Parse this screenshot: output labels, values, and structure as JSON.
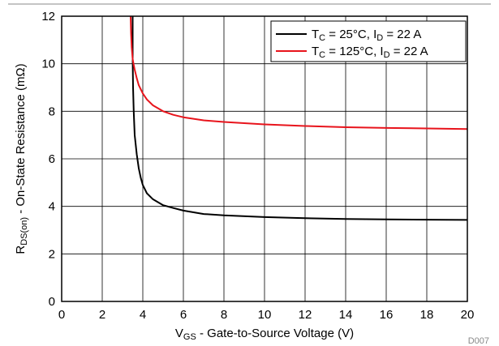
{
  "chart_data": {
    "type": "line",
    "xlabel": {
      "main": "V",
      "sub": "GS",
      "rest": " - Gate-to-Source Voltage (V)"
    },
    "ylabel": {
      "main": "R",
      "sub": "DS(on)",
      "rest": " - On-State Resistance (mΩ)"
    },
    "xlim": [
      0,
      20
    ],
    "ylim": [
      0,
      12
    ],
    "xticks": [
      0,
      2,
      4,
      6,
      8,
      10,
      12,
      14,
      16,
      18,
      20
    ],
    "yticks": [
      0,
      2,
      4,
      6,
      8,
      10,
      12
    ],
    "grid": true,
    "legend_position": "top-right",
    "footnote": "D007",
    "series": [
      {
        "legend": {
          "a": "T",
          "a_sub": "C",
          "b": " = 25°C, I",
          "b_sub": "D",
          "c": " = 22 A"
        },
        "color": "#000000",
        "x": [
          3.5,
          3.5,
          3.52,
          3.55,
          3.6,
          3.7,
          3.8,
          3.9,
          4.0,
          4.2,
          4.5,
          5.0,
          5.5,
          6.0,
          7.0,
          8.0,
          10.0,
          12.0,
          14.0,
          16.0,
          18.0,
          20.0
        ],
        "y": [
          12.0,
          10.2,
          9.0,
          8.0,
          7.0,
          6.2,
          5.6,
          5.2,
          4.9,
          4.55,
          4.3,
          4.05,
          3.93,
          3.82,
          3.68,
          3.62,
          3.55,
          3.5,
          3.47,
          3.45,
          3.44,
          3.43
        ]
      },
      {
        "legend": {
          "a": "T",
          "a_sub": "C",
          "b": " = 125°C, I",
          "b_sub": "D",
          "c": " = 22 A"
        },
        "color": "#e8141c",
        "x": [
          3.4,
          3.42,
          3.45,
          3.5,
          3.55,
          3.6,
          3.7,
          3.8,
          4.0,
          4.2,
          4.5,
          5.0,
          5.5,
          6.0,
          7.0,
          8.0,
          10.0,
          12.0,
          14.0,
          16.0,
          18.0,
          20.0
        ],
        "y": [
          12.0,
          11.3,
          10.7,
          10.2,
          9.95,
          9.75,
          9.4,
          9.1,
          8.75,
          8.5,
          8.25,
          8.0,
          7.85,
          7.75,
          7.62,
          7.55,
          7.45,
          7.38,
          7.33,
          7.3,
          7.28,
          7.25
        ]
      }
    ]
  }
}
